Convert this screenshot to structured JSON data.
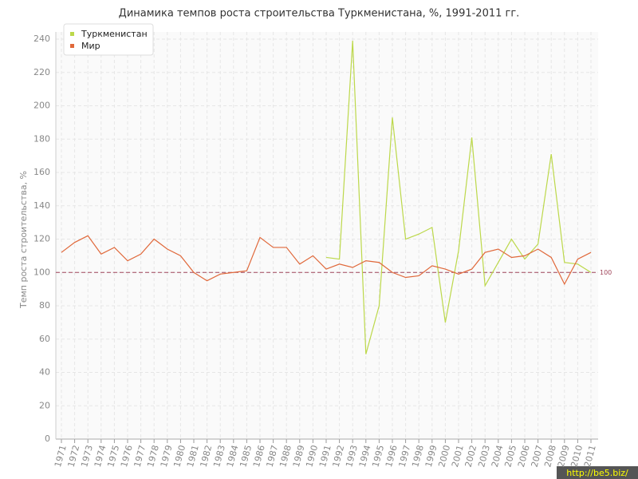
{
  "chart_data": {
    "type": "line",
    "title": "Динамика темпов роста строительства Туркменистана, %, 1991-2011 гг.",
    "y_label": "Темп роста строительства, %",
    "watermark": "http://be5.biz/",
    "categories": [
      "1971",
      "1972",
      "1973",
      "1974",
      "1975",
      "1976",
      "1977",
      "1978",
      "1979",
      "1980",
      "1981",
      "1982",
      "1983",
      "1984",
      "1985",
      "1986",
      "1987",
      "1988",
      "1989",
      "1990",
      "1991",
      "1992",
      "1993",
      "1994",
      "1995",
      "1996",
      "1997",
      "1998",
      "1999",
      "2000",
      "2001",
      "2002",
      "2003",
      "2004",
      "2005",
      "2006",
      "2007",
      "2008",
      "2009",
      "2010",
      "2011"
    ],
    "series": [
      {
        "name": "Туркменистан",
        "color": "#bcd84a",
        "values": [
          null,
          null,
          null,
          null,
          null,
          null,
          null,
          null,
          null,
          null,
          null,
          null,
          null,
          null,
          null,
          null,
          null,
          null,
          null,
          null,
          109,
          108,
          239,
          51,
          80,
          193,
          120,
          123,
          127,
          70,
          113,
          181,
          92,
          106,
          120,
          108,
          117,
          171,
          106,
          105,
          100
        ]
      },
      {
        "name": "Мир",
        "color": "#e0683a",
        "values": [
          112,
          118,
          122,
          111,
          115,
          107,
          111,
          120,
          114,
          110,
          100,
          95,
          99,
          100,
          101,
          121,
          115,
          115,
          105,
          110,
          102,
          105,
          103,
          107,
          106,
          100,
          97,
          98,
          104,
          102,
          99,
          102,
          112,
          114,
          109,
          110,
          114,
          109,
          93,
          108,
          112
        ]
      }
    ],
    "reference_line": {
      "value": 100,
      "color": "#a0455a"
    },
    "ylim": [
      0,
      240
    ],
    "yticks": [
      0,
      20,
      40,
      60,
      80,
      100,
      120,
      140,
      160,
      180,
      200,
      220,
      240
    ],
    "grid": true,
    "legend": "top-left"
  }
}
